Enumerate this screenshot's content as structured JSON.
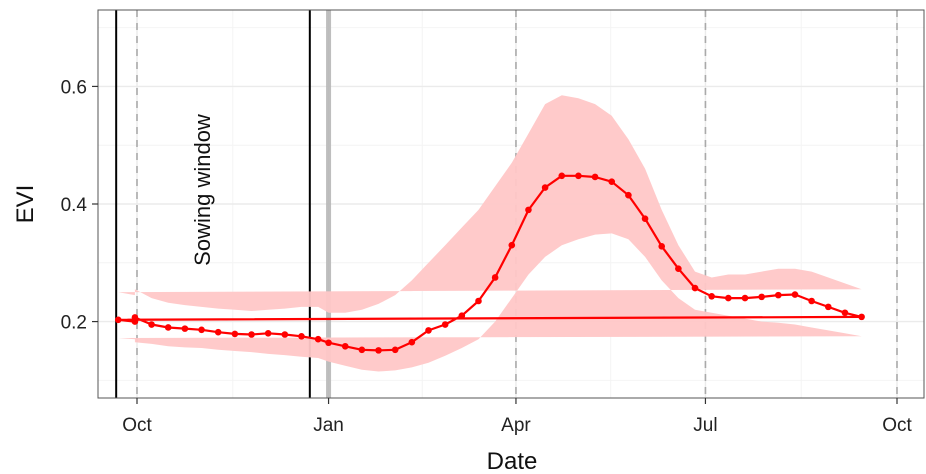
{
  "chart_data": {
    "type": "line",
    "title": "",
    "xlabel": "Date",
    "ylabel": "EVI",
    "ylim": [
      0.07,
      0.73
    ],
    "y_ticks": [
      {
        "value": 0.2,
        "label": "0.2"
      },
      {
        "value": 0.4,
        "label": "0.4"
      },
      {
        "value": 0.6,
        "label": "0.6"
      }
    ],
    "x_ticks": [
      {
        "date": "Oct",
        "label": "Oct"
      },
      {
        "date": "Jan",
        "label": "Jan"
      },
      {
        "date": "Apr",
        "label": "Apr"
      },
      {
        "date": "Jul",
        "label": "Jul"
      },
      {
        "date": "Oct",
        "label": "Oct"
      }
    ],
    "grid": true,
    "legend": "none",
    "series": [
      {
        "color": "#ff0000",
        "band_color": "#ffc7c7",
        "x": [
          "Sep 30",
          "Oct 8",
          "Oct 16",
          "Oct 24",
          "Nov 1",
          "Nov 9",
          "Nov 17",
          "Nov 25",
          "Dec 3",
          "Dec 11",
          "Dec 19",
          "Dec 27",
          "Jan 1",
          "Jan 9",
          "Jan 17",
          "Jan 25",
          "Feb 2",
          "Feb 10",
          "Feb 18",
          "Feb 26",
          "Mar 6",
          "Mar 14",
          "Mar 22",
          "Mar 30",
          "Apr 7",
          "Apr 15",
          "Apr 23",
          "May 1",
          "May 9",
          "May 17",
          "May 25",
          "Jun 2",
          "Jun 10",
          "Jun 18",
          "Jun 26",
          "Jul 4",
          "Jul 12",
          "Jul 20",
          "Jul 28",
          "Aug 5",
          "Aug 13",
          "Aug 21",
          "Aug 29",
          "Sep 6",
          "Sep 14",
          "Sep 22",
          "Sep 30"
        ],
        "values": [
          0.207,
          0.195,
          0.19,
          0.188,
          0.186,
          0.182,
          0.179,
          0.178,
          0.18,
          0.178,
          0.175,
          0.17,
          0.164,
          0.158,
          0.152,
          0.151,
          0.152,
          0.165,
          0.185,
          0.195,
          0.21,
          0.235,
          0.275,
          0.33,
          0.39,
          0.428,
          0.448,
          0.448,
          0.446,
          0.438,
          0.415,
          0.375,
          0.328,
          0.29,
          0.257,
          0.243,
          0.24,
          0.24,
          0.242,
          0.245,
          0.246,
          0.235,
          0.225,
          0.215,
          0.208,
          0.203,
          0.2
        ],
        "lower": [
          0.165,
          0.162,
          0.158,
          0.156,
          0.155,
          0.152,
          0.15,
          0.148,
          0.145,
          0.143,
          0.14,
          0.138,
          0.132,
          0.125,
          0.118,
          0.115,
          0.117,
          0.122,
          0.13,
          0.142,
          0.155,
          0.17,
          0.2,
          0.24,
          0.28,
          0.31,
          0.33,
          0.34,
          0.348,
          0.35,
          0.34,
          0.31,
          0.27,
          0.24,
          0.22,
          0.215,
          0.21,
          0.205,
          0.2,
          0.198,
          0.195,
          0.19,
          0.185,
          0.18,
          0.175,
          0.172,
          0.17
        ],
        "upper": [
          0.255,
          0.24,
          0.232,
          0.228,
          0.225,
          0.222,
          0.22,
          0.218,
          0.22,
          0.222,
          0.225,
          0.225,
          0.215,
          0.215,
          0.22,
          0.23,
          0.245,
          0.27,
          0.3,
          0.33,
          0.36,
          0.39,
          0.43,
          0.47,
          0.52,
          0.57,
          0.585,
          0.58,
          0.57,
          0.55,
          0.51,
          0.46,
          0.39,
          0.33,
          0.285,
          0.275,
          0.28,
          0.28,
          0.285,
          0.29,
          0.29,
          0.285,
          0.275,
          0.265,
          0.255,
          0.25,
          0.245
        ]
      }
    ],
    "vertical_lines": [
      {
        "date": "Sep 21",
        "style": "solid",
        "color": "#000000"
      },
      {
        "date": "Dec 23",
        "style": "solid",
        "color": "#000000"
      },
      {
        "date": "Jan 1",
        "style": "solid",
        "color": "#b8b8b8"
      },
      {
        "date": "Oct",
        "style": "dashed",
        "color": "#aaaaaa"
      },
      {
        "date": "Apr",
        "style": "dashed",
        "color": "#aaaaaa"
      },
      {
        "date": "Jul",
        "style": "dashed",
        "color": "#aaaaaa"
      },
      {
        "date": "Oct",
        "style": "dashed",
        "color": "#aaaaaa"
      }
    ],
    "annotations": [
      {
        "text": "Sowing window",
        "rotation": -90
      }
    ]
  }
}
